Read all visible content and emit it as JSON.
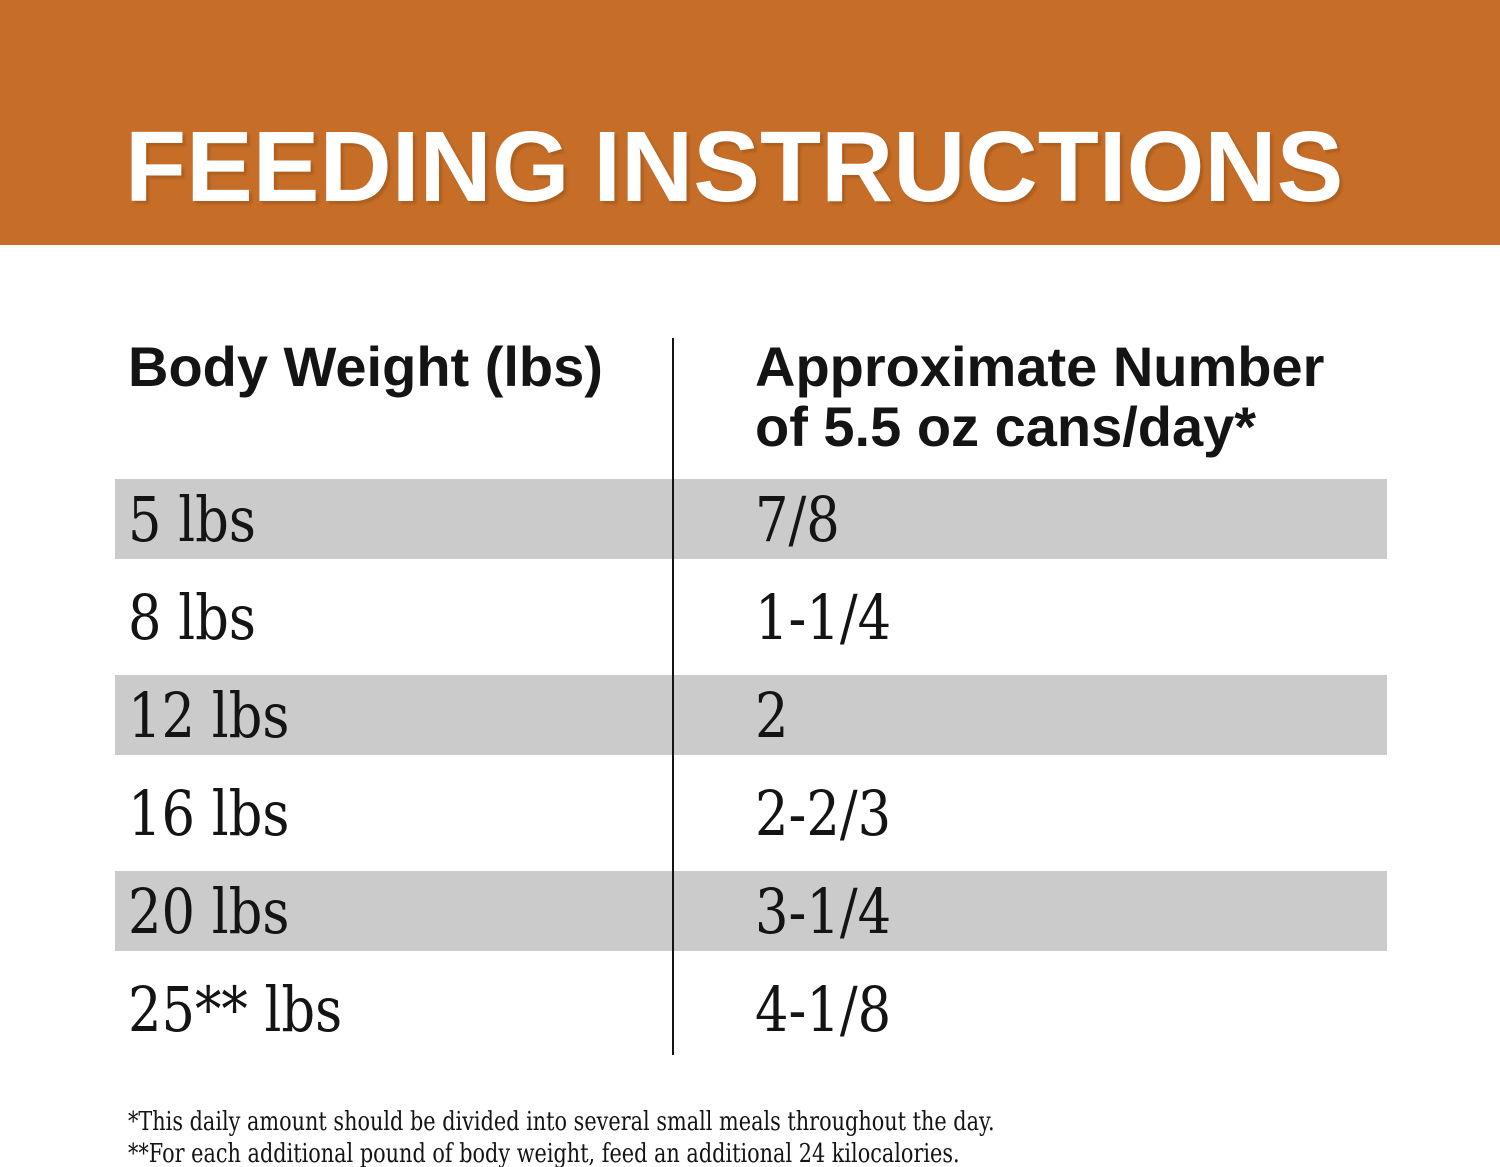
{
  "banner": {
    "title": "FEEDING INSTRUCTIONS",
    "bg_color": "#C66E28",
    "text_color": "#FFFFFF"
  },
  "table": {
    "columns": {
      "body_weight": "Body Weight (lbs)",
      "cans_line1": "Approximate Number",
      "cans_line2": "of 5.5 oz cans/day*"
    },
    "shaded_row_color": "#CBCBCB",
    "rows": [
      {
        "weight": "5 lbs",
        "cans": "7/8"
      },
      {
        "weight": "8 lbs",
        "cans": "1-1/4"
      },
      {
        "weight": "12 lbs",
        "cans": "2"
      },
      {
        "weight": "16 lbs",
        "cans": "2-2/3"
      },
      {
        "weight": "20 lbs",
        "cans": "3-1/4"
      },
      {
        "weight": "25** lbs",
        "cans": "4-1/8"
      }
    ]
  },
  "footnotes": {
    "daily_amount": "*This daily amount should be divided into several small meals throughout the day.",
    "additional_weight": "**For each additional pound of body weight, feed an additional 24 kilocalories."
  }
}
